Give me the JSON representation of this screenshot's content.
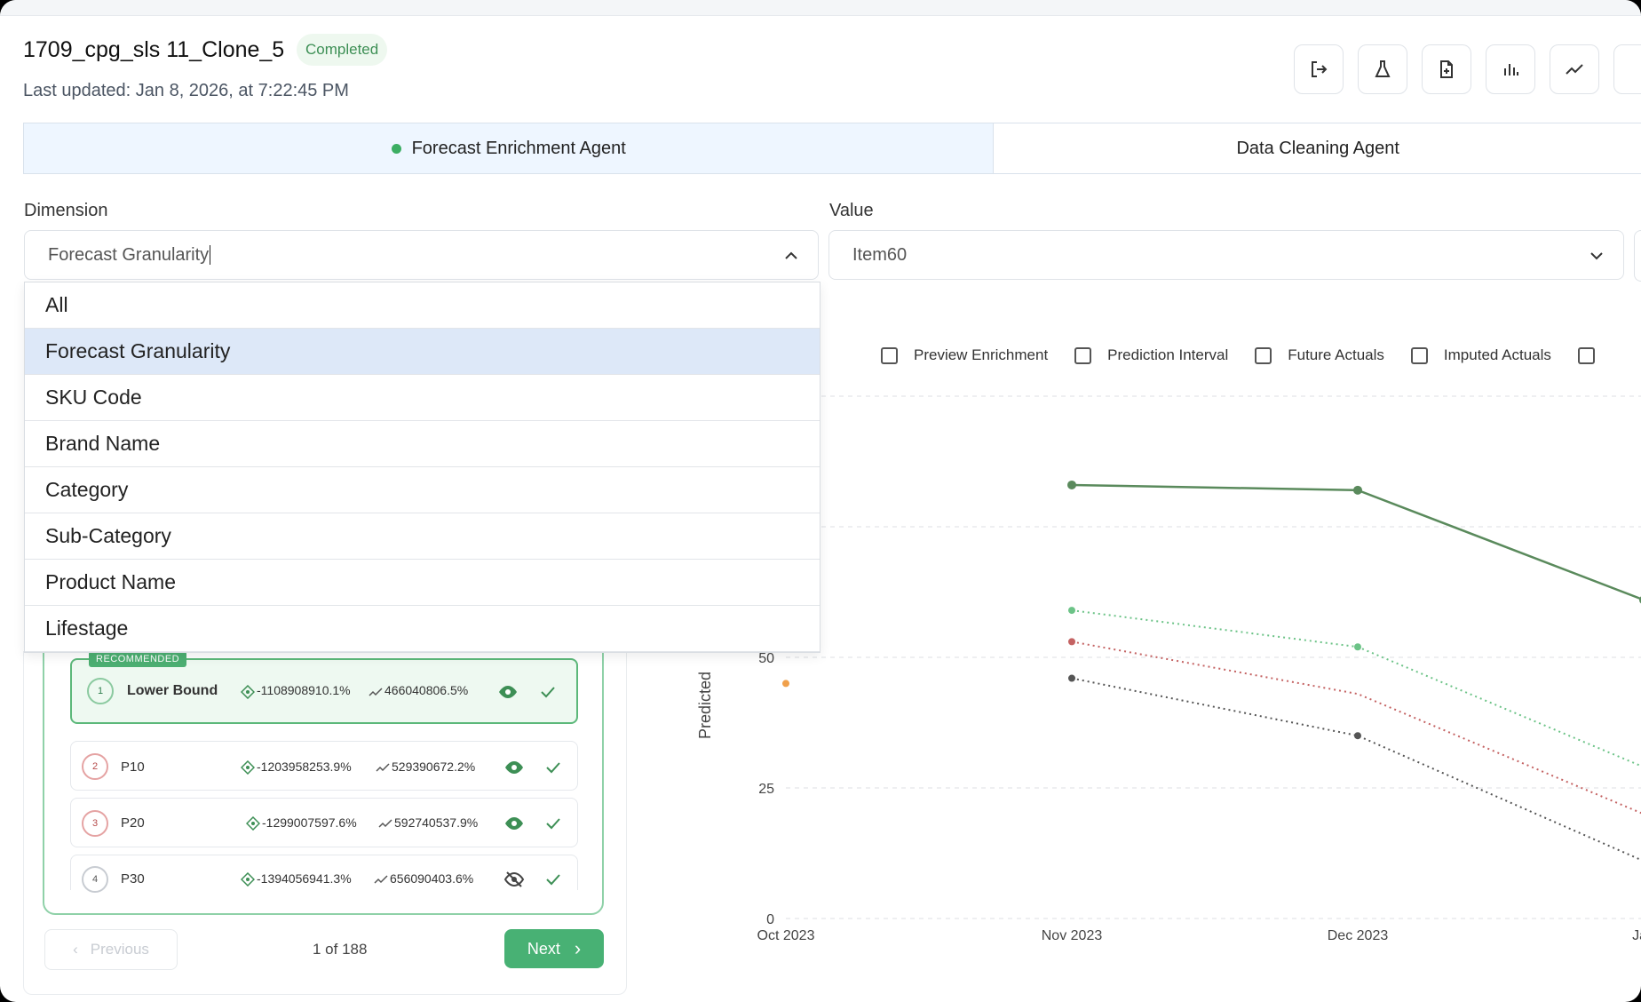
{
  "header": {
    "title": "1709_cpg_sls 11_Clone_5",
    "status": "Completed",
    "last_updated": "Last updated: Jan 8, 2026, at 7:22:45 PM"
  },
  "toolbar": {
    "icons": [
      "exit-icon",
      "flask-icon",
      "file-plus-icon",
      "bar-chart-icon",
      "trend-line-icon"
    ]
  },
  "tabs": [
    {
      "label": "Forecast Enrichment Agent",
      "active": true
    },
    {
      "label": "Data Cleaning Agent",
      "active": false
    }
  ],
  "filters": {
    "dimension_label": "Dimension",
    "dimension_value": "Forecast Granularity",
    "value_label": "Value",
    "value_value": "Item60"
  },
  "dropdown": {
    "options": [
      "All",
      "Forecast Granularity",
      "SKU Code",
      "Brand Name",
      "Category",
      "Sub-Category",
      "Product Name",
      "Lifestage"
    ],
    "selected": "Forecast Granularity"
  },
  "toggles": [
    {
      "label": "Preview Enrichment",
      "checked": false
    },
    {
      "label": "Prediction Interval",
      "checked": false
    },
    {
      "label": "Future Actuals",
      "checked": false
    },
    {
      "label": "Imputed Actuals",
      "checked": false
    }
  ],
  "recommendations": {
    "tag": "RECOMMENDED",
    "items": [
      {
        "rank": "1",
        "name": "Lower Bound",
        "metric_a": "-1108908910.1%",
        "metric_b": "466040806.5%",
        "visible": true
      },
      {
        "rank": "2",
        "name": "P10",
        "metric_a": "-1203958253.9%",
        "metric_b": "529390672.2%",
        "visible": true
      },
      {
        "rank": "3",
        "name": "P20",
        "metric_a": "-1299007597.6%",
        "metric_b": "592740537.9%",
        "visible": true
      },
      {
        "rank": "4",
        "name": "P30",
        "metric_a": "-1394056941.3%",
        "metric_b": "656090403.6%",
        "visible": false
      }
    ]
  },
  "pager": {
    "previous": "Previous",
    "info": "1 of 188",
    "next": "Next"
  },
  "colors": {
    "accent_green": "#48b174",
    "selected_row": "#dde8f8",
    "series_dark_green": "#5a8a5c",
    "series_light_green": "#6cc387",
    "series_red": "#c46262",
    "series_grey": "#555555"
  },
  "chart_data": {
    "type": "line",
    "ylabel": "Predicted",
    "x": [
      "Oct 2023",
      "Nov 2023",
      "Dec 2023",
      "Jan"
    ],
    "yticks": [
      0,
      25,
      50
    ],
    "ylim": [
      0,
      100
    ],
    "series": [
      {
        "values": [
          null,
          83,
          82,
          61
        ],
        "style": "solid",
        "color": "#5a8a5c"
      },
      {
        "values": [
          null,
          59,
          52,
          29
        ],
        "style": "dotted",
        "color": "#6cc387"
      },
      {
        "values": [
          45,
          53,
          43,
          20
        ],
        "style": "dotted",
        "color": "#c46262"
      },
      {
        "values": [
          null,
          46,
          35,
          11
        ],
        "style": "dotted",
        "color": "#555555"
      }
    ]
  }
}
